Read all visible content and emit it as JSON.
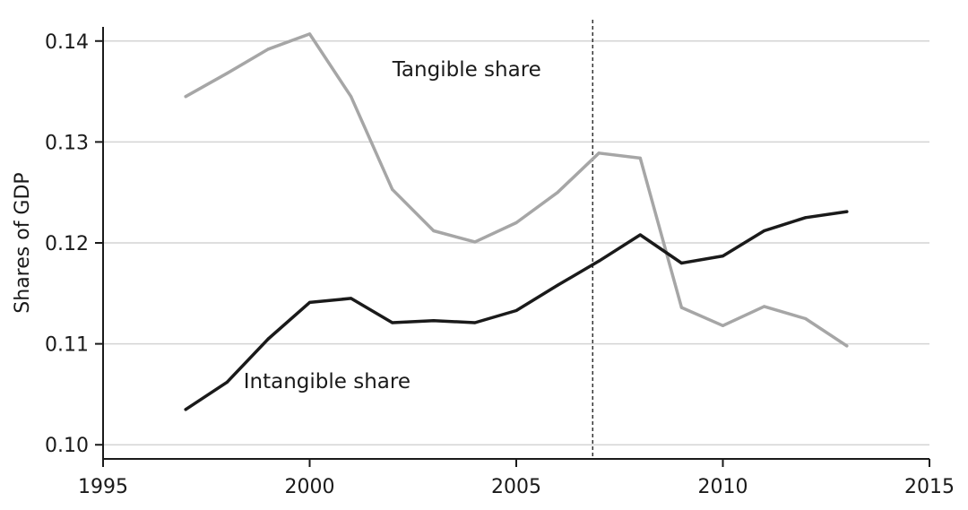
{
  "chart_data": {
    "type": "line",
    "ylabel": "Shares of GDP",
    "xlabel": "",
    "xlim": [
      1995,
      2015
    ],
    "ylim": [
      0.1,
      0.142
    ],
    "x_ticks": [
      1995,
      2000,
      2005,
      2010,
      2015
    ],
    "x_tick_labels": [
      "1995",
      "2000",
      "2005",
      "2010",
      "2015"
    ],
    "y_ticks": [
      0.1,
      0.11,
      0.12,
      0.13,
      0.14
    ],
    "y_tick_labels": [
      "0.10",
      "0.11",
      "0.12",
      "0.13",
      "0.14"
    ],
    "grid": "horizontal",
    "reference_line_x": 2006.85,
    "x": [
      1997,
      1998,
      1999,
      2000,
      2001,
      2002,
      2003,
      2004,
      2005,
      2006,
      2007,
      2008,
      2009,
      2010,
      2011,
      2012,
      2013
    ],
    "series": [
      {
        "name": "Tangible share",
        "label_at": [
          2002,
          0.1365
        ],
        "color": "#a6a6a6",
        "values": [
          0.1345,
          0.1368,
          0.1392,
          0.1407,
          0.1345,
          0.1253,
          0.1212,
          0.1201,
          0.122,
          0.125,
          0.1289,
          0.1284,
          0.1136,
          0.1118,
          0.1137,
          0.1125,
          0.1098
        ]
      },
      {
        "name": "Intangible share",
        "label_at": [
          1998.4,
          0.1056
        ],
        "color": "#1a1a1a",
        "values": [
          0.1035,
          0.1062,
          0.1105,
          0.1141,
          0.1145,
          0.1121,
          0.1123,
          0.1121,
          0.1133,
          0.1158,
          0.1182,
          0.1208,
          0.118,
          0.1187,
          0.1212,
          0.1225,
          0.1231
        ]
      }
    ]
  }
}
